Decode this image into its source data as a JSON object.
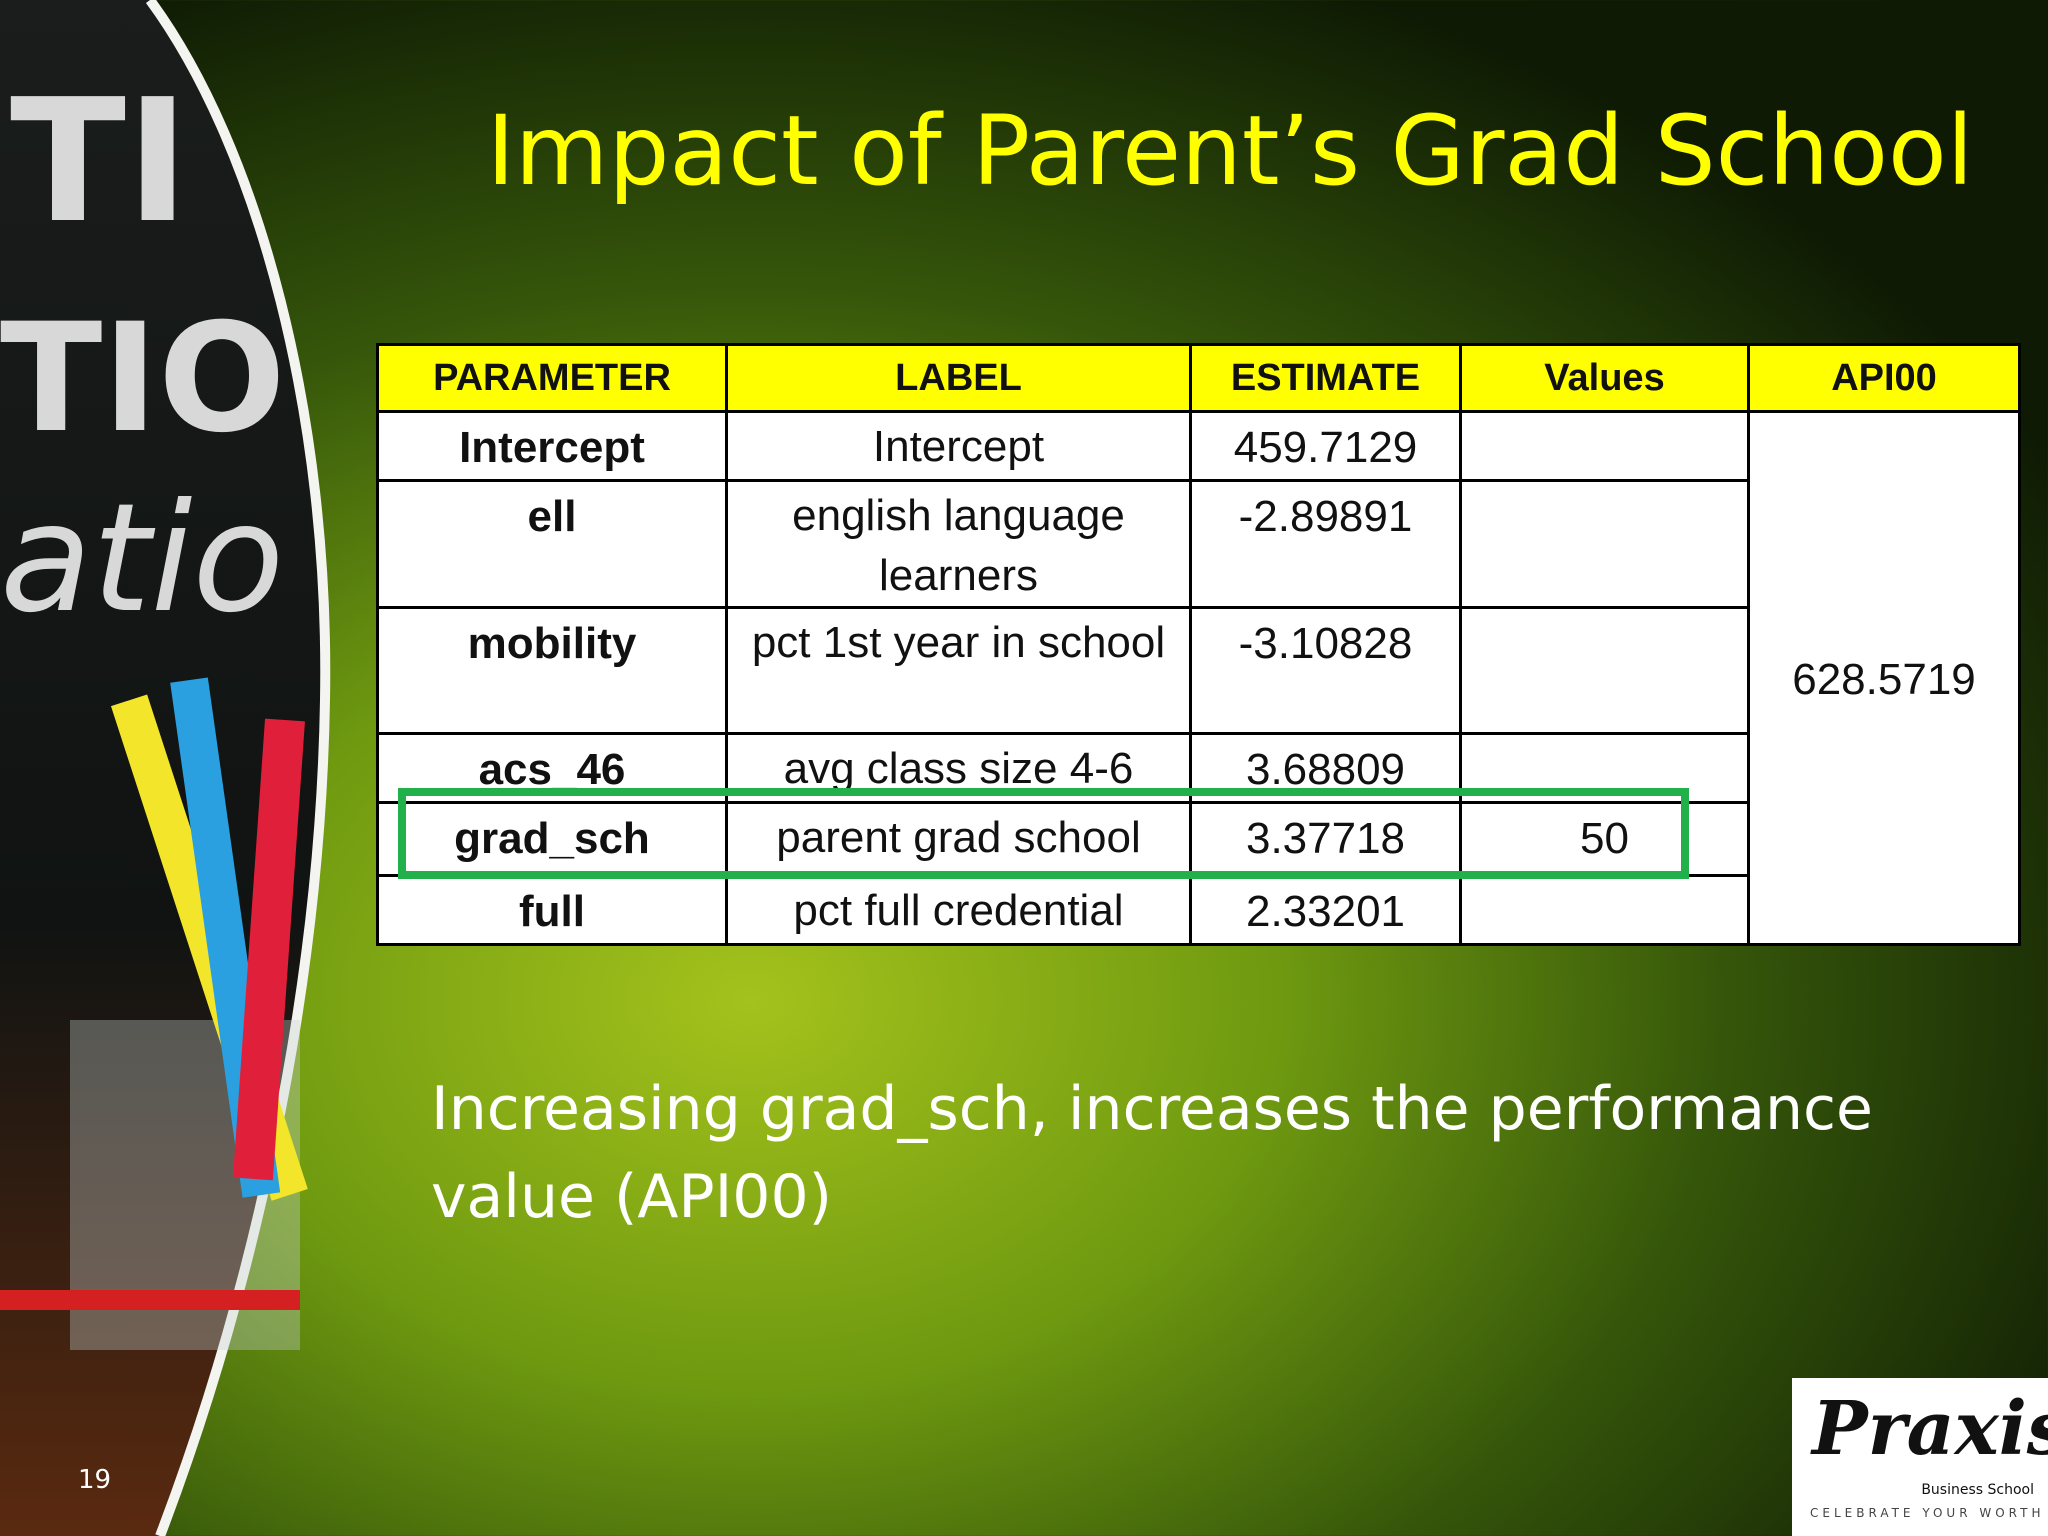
{
  "slide_number": 19,
  "title": "Impact of Parent’s Grad School",
  "table": {
    "headers": [
      "PARAMETER",
      "LABEL",
      "ESTIMATE",
      "Values",
      "API00"
    ],
    "rows": [
      {
        "parameter": "Intercept",
        "label": "Intercept",
        "estimate": 459.7129
      },
      {
        "parameter": "ell",
        "label": "english language learners",
        "estimate": -2.89891
      },
      {
        "parameter": "mobility",
        "label": "pct 1st year in school",
        "estimate": -3.10828
      },
      {
        "parameter": "acs_46",
        "label": "avg class size 4-6",
        "estimate": 3.68809
      },
      {
        "parameter": "grad_sch",
        "label": "parent grad school",
        "estimate": 3.37718,
        "value": 50
      },
      {
        "parameter": "full",
        "label": "pct full credential",
        "estimate": 2.33201
      }
    ],
    "api00": 628.5719
  },
  "body": "Increasing grad_sch, increases the performance value (API00)",
  "logo": {
    "name": "Praxis",
    "subtitle": "Business School",
    "tagline": "CELEBRATE YOUR WORTH"
  }
}
